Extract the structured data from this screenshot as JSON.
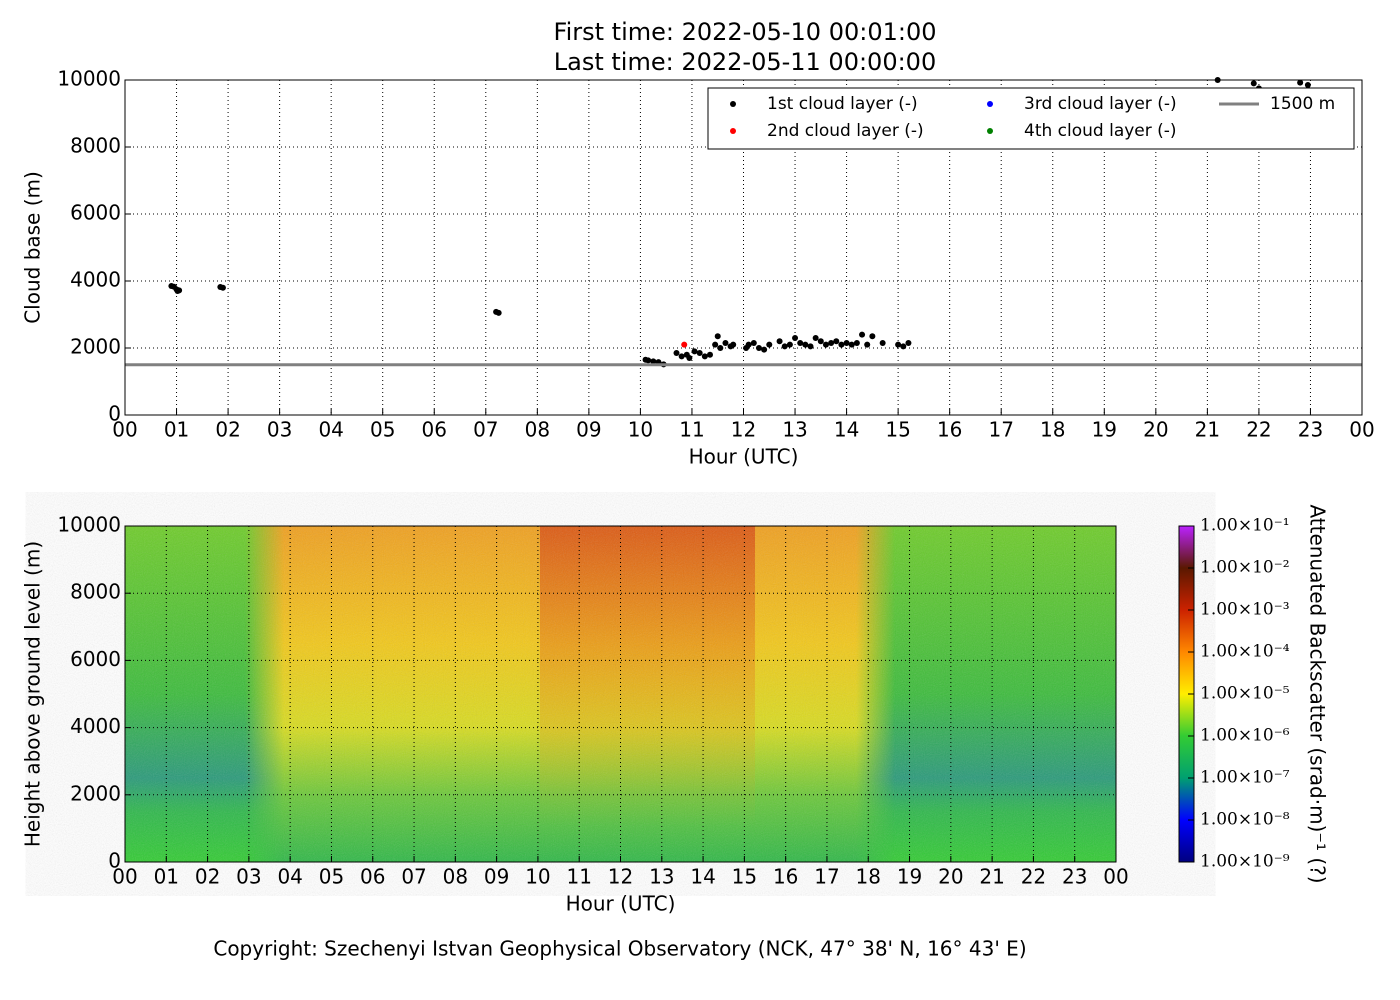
{
  "chart_data": [
    {
      "type": "scatter",
      "title_lines": [
        "First time: 2022-05-10 00:01:00",
        "Last time: 2022-05-11 00:00:00"
      ],
      "x_label": "Hour (UTC)",
      "y_label": "Cloud base (m)",
      "xlim": [
        0,
        24
      ],
      "ylim": [
        0,
        10000
      ],
      "xticks": [
        {
          "value": 0,
          "label": "00"
        },
        {
          "value": 1,
          "label": "01"
        },
        {
          "value": 2,
          "label": "02"
        },
        {
          "value": 3,
          "label": "03"
        },
        {
          "value": 4,
          "label": "04"
        },
        {
          "value": 5,
          "label": "05"
        },
        {
          "value": 6,
          "label": "06"
        },
        {
          "value": 7,
          "label": "07"
        },
        {
          "value": 8,
          "label": "08"
        },
        {
          "value": 9,
          "label": "09"
        },
        {
          "value": 10,
          "label": "10"
        },
        {
          "value": 11,
          "label": "11"
        },
        {
          "value": 12,
          "label": "12"
        },
        {
          "value": 13,
          "label": "13"
        },
        {
          "value": 14,
          "label": "14"
        },
        {
          "value": 15,
          "label": "15"
        },
        {
          "value": 16,
          "label": "16"
        },
        {
          "value": 17,
          "label": "17"
        },
        {
          "value": 18,
          "label": "18"
        },
        {
          "value": 19,
          "label": "19"
        },
        {
          "value": 20,
          "label": "20"
        },
        {
          "value": 21,
          "label": "21"
        },
        {
          "value": 22,
          "label": "22"
        },
        {
          "value": 23,
          "label": "23"
        },
        {
          "value": 24,
          "label": "00"
        }
      ],
      "yticks": [
        0,
        2000,
        4000,
        6000,
        8000,
        10000
      ],
      "grid": true,
      "legend": "upper right",
      "series": [
        {
          "name": "1st cloud layer (-)",
          "color": "#000000",
          "x": [
            0.9,
            0.95,
            1.0,
            1.02,
            1.05,
            1.85,
            1.9,
            7.2,
            7.25,
            10.1,
            10.15,
            10.25,
            10.35,
            10.45,
            10.7,
            10.8,
            10.9,
            10.95,
            11.05,
            11.15,
            11.25,
            11.35,
            11.45,
            11.5,
            11.55,
            11.65,
            11.75,
            11.8,
            12.05,
            12.1,
            12.2,
            12.3,
            12.4,
            12.5,
            12.7,
            12.8,
            12.9,
            13.0,
            13.1,
            13.2,
            13.3,
            13.4,
            13.5,
            13.6,
            13.7,
            13.8,
            13.9,
            14.0,
            14.1,
            14.2,
            14.3,
            14.4,
            14.5,
            14.7,
            15.0,
            15.1,
            15.2,
            21.2,
            21.9,
            22.0,
            22.8,
            22.95
          ],
          "values": [
            3850,
            3830,
            3750,
            3700,
            3720,
            3820,
            3800,
            3080,
            3050,
            1650,
            1630,
            1600,
            1580,
            1510,
            1850,
            1750,
            1800,
            1700,
            1900,
            1850,
            1750,
            1800,
            2100,
            2350,
            2000,
            2150,
            2050,
            2100,
            2000,
            2100,
            2150,
            2000,
            1950,
            2100,
            2200,
            2050,
            2100,
            2300,
            2150,
            2100,
            2050,
            2300,
            2200,
            2100,
            2150,
            2200,
            2100,
            2150,
            2100,
            2150,
            2400,
            2100,
            2350,
            2150,
            2100,
            2050,
            2150,
            10000,
            9900,
            9750,
            9920,
            9850
          ]
        },
        {
          "name": "2nd cloud layer (-)",
          "color": "#ff0000",
          "x": [
            10.85
          ],
          "values": [
            2100
          ]
        },
        {
          "name": "3rd cloud layer (-)",
          "color": "#0000ff",
          "x": [],
          "values": []
        },
        {
          "name": "4th cloud layer (-)",
          "color": "#008000",
          "x": [],
          "values": []
        },
        {
          "name": "1500 m",
          "color": "#808080",
          "style": "hline",
          "values": [
            1500
          ]
        }
      ]
    },
    {
      "type": "heatmap",
      "x_label": "Hour (UTC)",
      "y_label": "Height above ground level (m)",
      "xlim": [
        0,
        24
      ],
      "ylim": [
        0,
        10000
      ],
      "xticks": [
        {
          "value": 0,
          "label": "00"
        },
        {
          "value": 1,
          "label": "01"
        },
        {
          "value": 2,
          "label": "02"
        },
        {
          "value": 3,
          "label": "03"
        },
        {
          "value": 4,
          "label": "04"
        },
        {
          "value": 5,
          "label": "05"
        },
        {
          "value": 6,
          "label": "06"
        },
        {
          "value": 7,
          "label": "07"
        },
        {
          "value": 8,
          "label": "08"
        },
        {
          "value": 9,
          "label": "09"
        },
        {
          "value": 10,
          "label": "10"
        },
        {
          "value": 11,
          "label": "11"
        },
        {
          "value": 12,
          "label": "12"
        },
        {
          "value": 13,
          "label": "13"
        },
        {
          "value": 14,
          "label": "14"
        },
        {
          "value": 15,
          "label": "15"
        },
        {
          "value": 16,
          "label": "16"
        },
        {
          "value": 17,
          "label": "17"
        },
        {
          "value": 18,
          "label": "18"
        },
        {
          "value": 19,
          "label": "19"
        },
        {
          "value": 20,
          "label": "20"
        },
        {
          "value": 21,
          "label": "21"
        },
        {
          "value": 22,
          "label": "22"
        },
        {
          "value": 23,
          "label": "23"
        },
        {
          "value": 24,
          "label": "00"
        }
      ],
      "yticks": [
        0,
        2000,
        4000,
        6000,
        8000,
        10000
      ],
      "grid": true,
      "colorbar": {
        "label": "Attenuated Backscatter (srad·m)⁻¹ (?)",
        "lim": [
          1e-09,
          0.1
        ],
        "log_scale": true,
        "ticks": [
          {
            "value": 1e-09,
            "label": "1.00×10⁻⁹"
          },
          {
            "value": 1e-08,
            "label": "1.00×10⁻⁸"
          },
          {
            "value": 1e-07,
            "label": "1.00×10⁻⁷"
          },
          {
            "value": 1e-06,
            "label": "1.00×10⁻⁶"
          },
          {
            "value": 1e-05,
            "label": "1.00×10⁻⁵"
          },
          {
            "value": 0.0001,
            "label": "1.00×10⁻⁴"
          },
          {
            "value": 0.001,
            "label": "1.00×10⁻³"
          },
          {
            "value": 0.01,
            "label": "1.00×10⁻²"
          },
          {
            "value": 0.1,
            "label": "1.00×10⁻¹"
          }
        ]
      }
    }
  ],
  "footer": "Copyright: Szechenyi Istvan Geophysical Observatory (NCK, 47° 38' N, 16° 43' E)"
}
